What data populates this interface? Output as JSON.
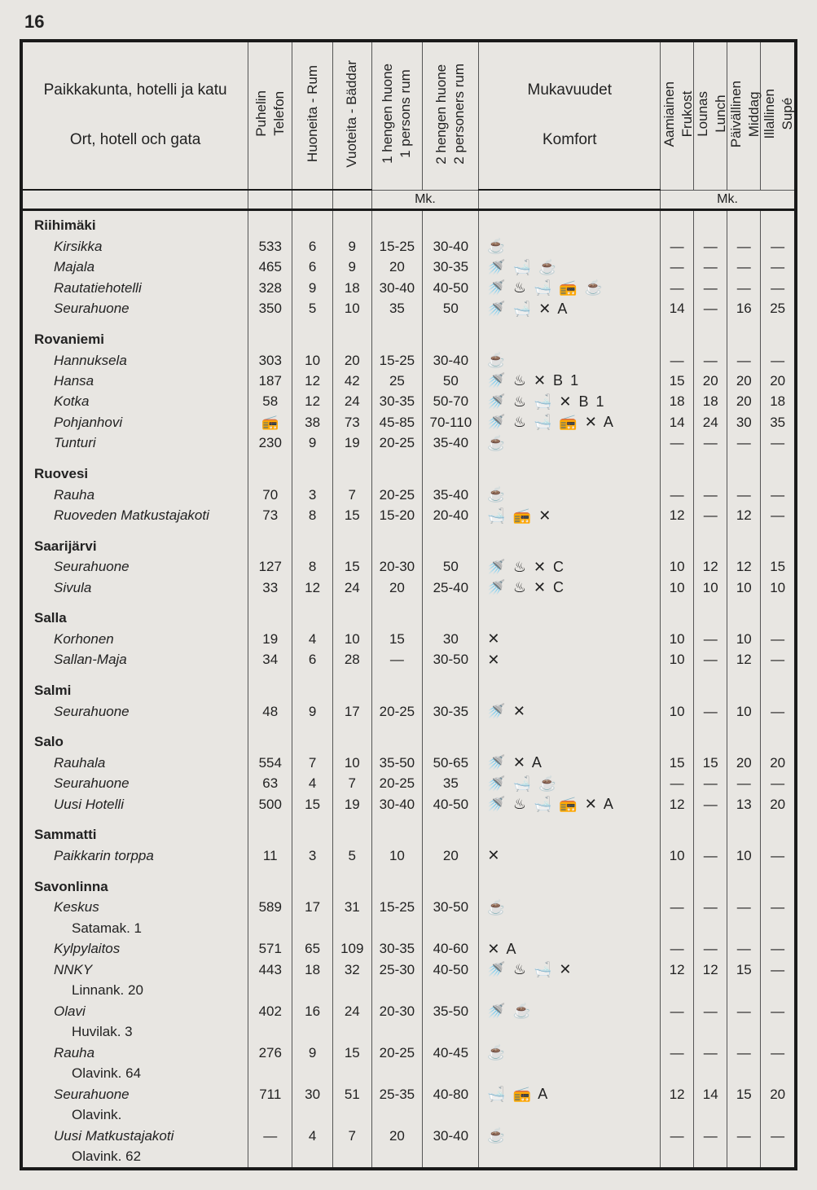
{
  "page_number": "16",
  "headers": {
    "location": "Paikkakunta, hotelli ja katu\n\nOrt, hotell och gata",
    "phone": "Puhelin\nTelefon",
    "rooms": "Huoneita - Rum",
    "beds": "Vuoteita - Bäddar",
    "p1": "1 hengen huone\n1 persons rum",
    "p2": "2 hengen huone\n2 personers rum",
    "comfort": "Mukavuudet\n\nKomfort",
    "meal1": "Aamiainen\nFrukost",
    "meal2": "Lounas\nLunch",
    "meal3": "Päivällinen\nMiddag",
    "meal4": "Illallinen\nSupé",
    "mk": "Mk."
  },
  "rows": [
    {
      "type": "city",
      "name": "Riihimäki"
    },
    {
      "type": "hotel",
      "name": "Kirsikka",
      "tel": "533",
      "rum": "6",
      "bad": "9",
      "p1": "15-25",
      "p2": "30-40",
      "k": "☕",
      "m": [
        "—",
        "—",
        "—",
        "—"
      ]
    },
    {
      "type": "hotel",
      "name": "Majala",
      "tel": "465",
      "rum": "6",
      "bad": "9",
      "p1": "20",
      "p2": "30-35",
      "k": "🚿 🛁 ☕",
      "m": [
        "—",
        "—",
        "—",
        "—"
      ]
    },
    {
      "type": "hotel",
      "name": "Rautatiehotelli",
      "tel": "328",
      "rum": "9",
      "bad": "18",
      "p1": "30-40",
      "p2": "40-50",
      "k": "🚿 ♨ 🛁 📻 ☕",
      "m": [
        "—",
        "—",
        "—",
        "—"
      ]
    },
    {
      "type": "hotel",
      "name": "Seurahuone",
      "tel": "350",
      "rum": "5",
      "bad": "10",
      "p1": "35",
      "p2": "50",
      "k": "🚿 🛁 ✕ A",
      "m": [
        "14",
        "—",
        "16",
        "25"
      ]
    },
    {
      "type": "spacer"
    },
    {
      "type": "city",
      "name": "Rovaniemi"
    },
    {
      "type": "hotel",
      "name": "Hannuksela",
      "tel": "303",
      "rum": "10",
      "bad": "20",
      "p1": "15-25",
      "p2": "30-40",
      "k": "☕",
      "m": [
        "—",
        "—",
        "—",
        "—"
      ]
    },
    {
      "type": "hotel",
      "name": "Hansa",
      "tel": "187",
      "rum": "12",
      "bad": "42",
      "p1": "25",
      "p2": "50",
      "k": "🚿 ♨ ✕ B 1",
      "m": [
        "15",
        "20",
        "20",
        "20"
      ]
    },
    {
      "type": "hotel",
      "name": "Kotka",
      "tel": "58",
      "rum": "12",
      "bad": "24",
      "p1": "30-35",
      "p2": "50-70",
      "k": "🚿 ♨ 🛁 ✕ B 1",
      "m": [
        "18",
        "18",
        "20",
        "18"
      ]
    },
    {
      "type": "hotel",
      "name": "Pohjanhovi",
      "tel": "📻",
      "rum": "38",
      "bad": "73",
      "p1": "45-85",
      "p2": "70-110",
      "k": "🚿 ♨ 🛁 📻 ✕ A",
      "m": [
        "14",
        "24",
        "30",
        "35"
      ]
    },
    {
      "type": "hotel",
      "name": "Tunturi",
      "tel": "230",
      "rum": "9",
      "bad": "19",
      "p1": "20-25",
      "p2": "35-40",
      "k": "☕",
      "m": [
        "—",
        "—",
        "—",
        "—"
      ]
    },
    {
      "type": "spacer"
    },
    {
      "type": "city",
      "name": "Ruovesi"
    },
    {
      "type": "hotel",
      "name": "Rauha",
      "tel": "70",
      "rum": "3",
      "bad": "7",
      "p1": "20-25",
      "p2": "35-40",
      "k": "☕",
      "m": [
        "—",
        "—",
        "—",
        "—"
      ]
    },
    {
      "type": "hotel",
      "name": "Ruoveden Matkustajakoti",
      "tel": "73",
      "rum": "8",
      "bad": "15",
      "p1": "15-20",
      "p2": "20-40",
      "k": "🛁 📻 ✕",
      "m": [
        "12",
        "—",
        "12",
        "—"
      ]
    },
    {
      "type": "spacer"
    },
    {
      "type": "city",
      "name": "Saarijärvi"
    },
    {
      "type": "hotel",
      "name": "Seurahuone",
      "tel": "127",
      "rum": "8",
      "bad": "15",
      "p1": "20-30",
      "p2": "50",
      "k": "🚿 ♨ ✕ C",
      "m": [
        "10",
        "12",
        "12",
        "15"
      ]
    },
    {
      "type": "hotel",
      "name": "Sivula",
      "tel": "33",
      "rum": "12",
      "bad": "24",
      "p1": "20",
      "p2": "25-40",
      "k": "🚿 ♨ ✕ C",
      "m": [
        "10",
        "10",
        "10",
        "10"
      ]
    },
    {
      "type": "spacer"
    },
    {
      "type": "city",
      "name": "Salla"
    },
    {
      "type": "hotel",
      "name": "Korhonen",
      "tel": "19",
      "rum": "4",
      "bad": "10",
      "p1": "15",
      "p2": "30",
      "k": "✕",
      "m": [
        "10",
        "—",
        "10",
        "—"
      ]
    },
    {
      "type": "hotel",
      "name": "Sallan-Maja",
      "tel": "34",
      "rum": "6",
      "bad": "28",
      "p1": "—",
      "p2": "30-50",
      "k": "✕",
      "m": [
        "10",
        "—",
        "12",
        "—"
      ]
    },
    {
      "type": "spacer"
    },
    {
      "type": "city",
      "name": "Salmi"
    },
    {
      "type": "hotel",
      "name": "Seurahuone",
      "tel": "48",
      "rum": "9",
      "bad": "17",
      "p1": "20-25",
      "p2": "30-35",
      "k": "🚿 ✕",
      "m": [
        "10",
        "—",
        "10",
        "—"
      ]
    },
    {
      "type": "spacer"
    },
    {
      "type": "city",
      "name": "Salo"
    },
    {
      "type": "hotel",
      "name": "Rauhala",
      "tel": "554",
      "rum": "7",
      "bad": "10",
      "p1": "35-50",
      "p2": "50-65",
      "k": "🚿 ✕ A",
      "m": [
        "15",
        "15",
        "20",
        "20"
      ]
    },
    {
      "type": "hotel",
      "name": "Seurahuone",
      "tel": "63",
      "rum": "4",
      "bad": "7",
      "p1": "20-25",
      "p2": "35",
      "k": "🚿 🛁 ☕",
      "m": [
        "—",
        "—",
        "—",
        "—"
      ]
    },
    {
      "type": "hotel",
      "name": "Uusi Hotelli",
      "tel": "500",
      "rum": "15",
      "bad": "19",
      "p1": "30-40",
      "p2": "40-50",
      "k": "🚿 ♨ 🛁 📻 ✕ A",
      "m": [
        "12",
        "—",
        "13",
        "20"
      ]
    },
    {
      "type": "spacer"
    },
    {
      "type": "city",
      "name": "Sammatti"
    },
    {
      "type": "hotel",
      "name": "Paikkarin torppa",
      "tel": "11",
      "rum": "3",
      "bad": "5",
      "p1": "10",
      "p2": "20",
      "k": "✕",
      "m": [
        "10",
        "—",
        "10",
        "—"
      ]
    },
    {
      "type": "spacer"
    },
    {
      "type": "city",
      "name": "Savonlinna"
    },
    {
      "type": "hotel",
      "name": "Keskus",
      "tel": "589",
      "rum": "17",
      "bad": "31",
      "p1": "15-25",
      "p2": "30-50",
      "k": "☕",
      "m": [
        "—",
        "—",
        "—",
        "—"
      ]
    },
    {
      "type": "sub",
      "name": "Satamak. 1"
    },
    {
      "type": "hotel",
      "name": "Kylpylaitos",
      "tel": "571",
      "rum": "65",
      "bad": "109",
      "p1": "30-35",
      "p2": "40-60",
      "k": "✕ A",
      "m": [
        "—",
        "—",
        "—",
        "—"
      ]
    },
    {
      "type": "hotel",
      "name": "NNKY",
      "tel": "443",
      "rum": "18",
      "bad": "32",
      "p1": "25-30",
      "p2": "40-50",
      "k": "🚿 ♨ 🛁 ✕",
      "m": [
        "12",
        "12",
        "15",
        "—"
      ]
    },
    {
      "type": "sub",
      "name": "Linnank. 20"
    },
    {
      "type": "hotel",
      "name": "Olavi",
      "tel": "402",
      "rum": "16",
      "bad": "24",
      "p1": "20-30",
      "p2": "35-50",
      "k": "🚿 ☕",
      "m": [
        "—",
        "—",
        "—",
        "—"
      ]
    },
    {
      "type": "sub",
      "name": "Huvilak. 3"
    },
    {
      "type": "hotel",
      "name": "Rauha",
      "tel": "276",
      "rum": "9",
      "bad": "15",
      "p1": "20-25",
      "p2": "40-45",
      "k": "☕",
      "m": [
        "—",
        "—",
        "—",
        "—"
      ]
    },
    {
      "type": "sub",
      "name": "Olavink. 64"
    },
    {
      "type": "hotel",
      "name": "Seurahuone",
      "tel": "711",
      "rum": "30",
      "bad": "51",
      "p1": "25-35",
      "p2": "40-80",
      "k": "🛁 📻 A",
      "m": [
        "12",
        "14",
        "15",
        "20"
      ]
    },
    {
      "type": "sub",
      "name": "Olavink."
    },
    {
      "type": "hotel",
      "name": "Uusi Matkustajakoti",
      "tel": "—",
      "rum": "4",
      "bad": "7",
      "p1": "20",
      "p2": "30-40",
      "k": "☕",
      "m": [
        "—",
        "—",
        "—",
        "—"
      ]
    },
    {
      "type": "sub",
      "name": "Olavink. 62"
    }
  ]
}
